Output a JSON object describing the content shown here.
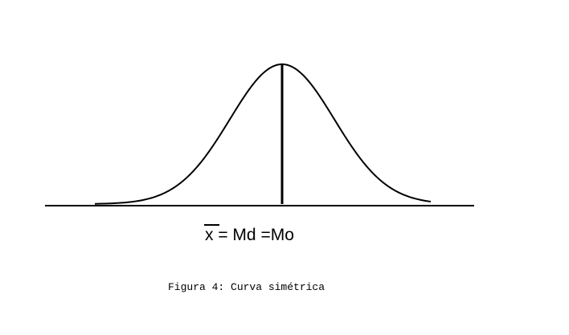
{
  "figure": {
    "type": "symmetric-bell-curve",
    "stroke_color": "#000000",
    "background_color": "#ffffff",
    "equation": {
      "mean_symbol": "x",
      "rest": " = Md =Mo"
    },
    "caption": "Figura 4: Curva simétrica"
  }
}
